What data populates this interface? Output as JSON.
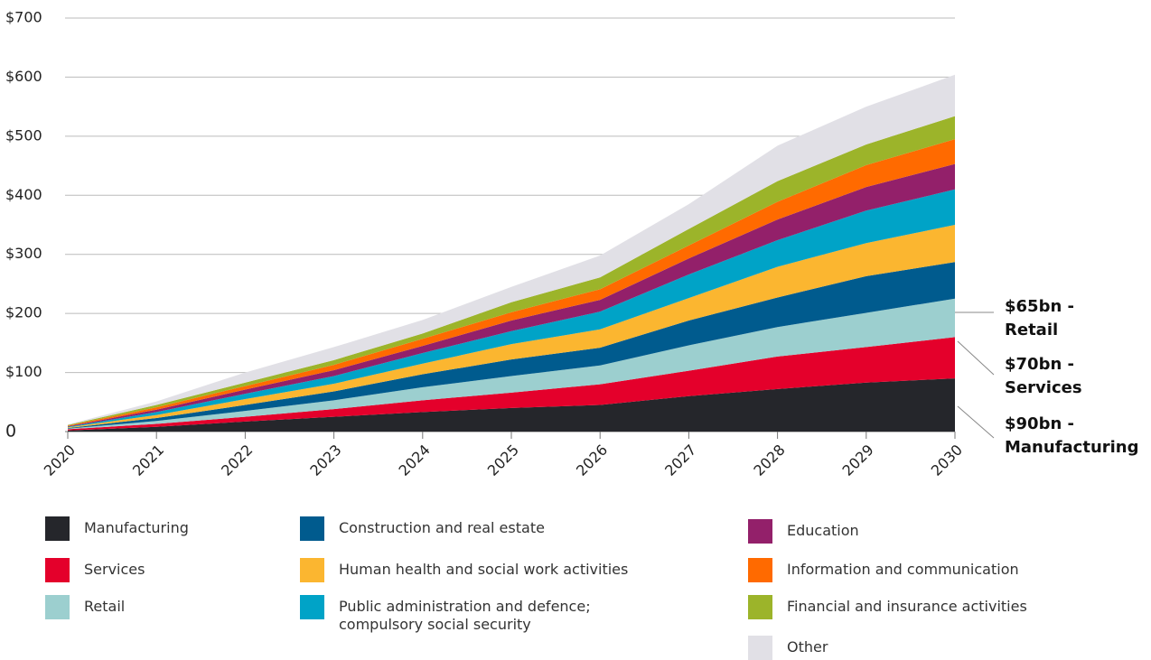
{
  "chart_data": {
    "type": "stacked_area",
    "categories": [
      "2020",
      "2021",
      "2022",
      "2023",
      "2024",
      "2025",
      "2026",
      "2027",
      "2028",
      "2029",
      "2030"
    ],
    "ylim": [
      0,
      700
    ],
    "yticks": [
      0,
      {
        "value": 100,
        "label": "$100"
      },
      {
        "value": 200,
        "label": "$200"
      },
      {
        "value": 300,
        "label": "$300"
      },
      {
        "value": 400,
        "label": "$400"
      },
      {
        "value": 500,
        "label": "$500"
      },
      {
        "value": 600,
        "label": "$600"
      },
      {
        "value": 700,
        "label": "$700"
      }
    ],
    "grid": true,
    "series": [
      {
        "name": "Manufacturing",
        "color": "#25262b",
        "values": [
          2,
          8,
          17,
          25,
          33,
          40,
          45,
          60,
          72,
          83,
          90
        ]
      },
      {
        "name": "Services",
        "color": "#e4002b",
        "values": [
          2,
          5,
          8,
          13,
          20,
          26,
          35,
          43,
          55,
          60,
          70
        ]
      },
      {
        "name": "Retail",
        "color": "#9ccfcf",
        "values": [
          1,
          5,
          10,
          15,
          22,
          28,
          32,
          43,
          50,
          58,
          65
        ]
      },
      {
        "name": "Construction and real estate",
        "color": "#005b8e",
        "values": [
          1,
          5,
          10,
          15,
          22,
          28,
          30,
          42,
          50,
          62,
          62
        ]
      },
      {
        "name": "Human health and social work activities",
        "color": "#fbb630",
        "values": [
          1,
          5,
          10,
          13,
          18,
          26,
          31,
          38,
          52,
          56,
          63
        ]
      },
      {
        "name": "Public administration and defence; compulsory social security",
        "color": "#00a3c7",
        "values": [
          1,
          5,
          9,
          13,
          18,
          22,
          30,
          40,
          45,
          55,
          60
        ]
      },
      {
        "name": "Education",
        "color": "#93206a",
        "values": [
          1,
          4,
          7,
          10,
          12,
          18,
          20,
          27,
          35,
          40,
          43
        ]
      },
      {
        "name": "Information and communication",
        "color": "#ff6a00",
        "values": [
          1,
          4,
          6,
          9,
          12,
          14,
          18,
          22,
          30,
          37,
          42
        ]
      },
      {
        "name": "Financial and insurance activities",
        "color": "#9cb42a",
        "values": [
          1,
          4,
          6,
          8,
          9,
          17,
          20,
          28,
          35,
          35,
          39
        ]
      },
      {
        "name": "Other",
        "color": "#e1e0e6",
        "values": [
          1,
          6,
          17,
          22,
          23,
          26,
          37,
          42,
          60,
          64,
          70
        ]
      }
    ],
    "annotations": [
      {
        "lines": [
          "$65bn -",
          "Retail"
        ]
      },
      {
        "lines": [
          "$70bn -",
          "Services"
        ]
      },
      {
        "lines": [
          "$90bn -",
          "Manufacturing"
        ]
      }
    ]
  }
}
